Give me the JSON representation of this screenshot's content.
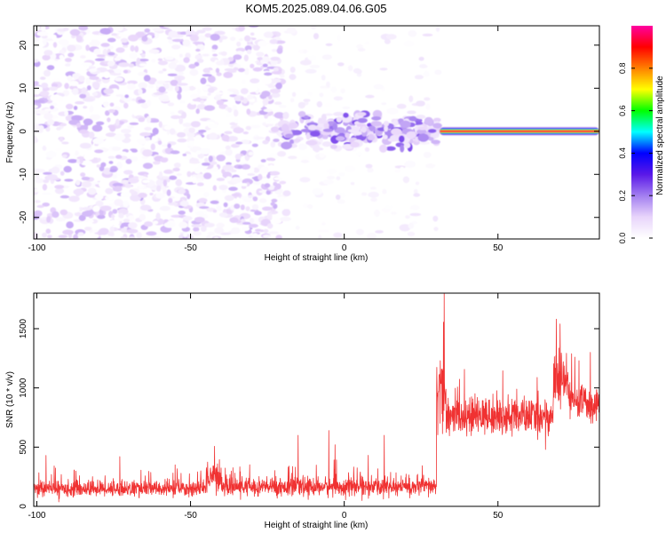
{
  "title": "KOM5.2025.089.04.06.G05",
  "chart_data": [
    {
      "type": "heatmap",
      "name": "spectrogram",
      "xlabel": "Height of straight line (km)",
      "ylabel": "Frequency (Hz)",
      "xlim": [
        -101,
        83
      ],
      "ylim": [
        -25,
        24.5
      ],
      "x_ticks": [
        -100,
        -50,
        0,
        50
      ],
      "y_ticks": [
        -20,
        -10,
        0,
        10,
        20
      ],
      "colorbar": {
        "label": "Normalized spectral amplitude",
        "range": [
          0.0,
          1.0
        ],
        "ticks": [
          "0.0",
          "0.2",
          "0.4",
          "0.6",
          "0.8"
        ],
        "colormap": [
          "#ffffff",
          "#e8d4fb",
          "#a27ef0",
          "#5a18e8",
          "#0000ff",
          "#00ffff",
          "#00ff00",
          "#ffff00",
          "#ff8000",
          "#ff0000",
          "#ff00a0"
        ]
      },
      "features": [
        {
          "kind": "scattered-noise",
          "x_range": [
            -101,
            -20
          ],
          "y_range": [
            -25,
            24.5
          ],
          "density": "high",
          "amplitude": [
            0.0,
            0.15
          ]
        },
        {
          "kind": "scattered-noise",
          "x_range": [
            -20,
            31
          ],
          "y_range": [
            -25,
            24.5
          ],
          "density": "low",
          "amplitude": [
            0.0,
            0.07
          ]
        },
        {
          "kind": "band-cluster",
          "x_range": [
            -20,
            31
          ],
          "y_range": [
            -4,
            4
          ],
          "amplitude": [
            0.05,
            0.25
          ]
        },
        {
          "kind": "carrier-line",
          "x_range": [
            31,
            83
          ],
          "frequency": 0,
          "amplitude": 0.95
        }
      ]
    },
    {
      "type": "line",
      "name": "snr",
      "xlabel": "Height of straight line (km)",
      "ylabel": "SNR (10 * v/v)",
      "xlim": [
        -101,
        83
      ],
      "ylim": [
        0,
        1800
      ],
      "x_ticks": [
        -100,
        -50,
        0,
        50
      ],
      "y_ticks": [
        0,
        500,
        1000,
        1500
      ],
      "color": "#f03232",
      "segments": [
        {
          "x_range": [
            -101,
            -45
          ],
          "mean": 150,
          "spread": 60
        },
        {
          "x_range": [
            -45,
            -40
          ],
          "mean": 260,
          "spread": 120
        },
        {
          "x_range": [
            -40,
            30
          ],
          "mean": 165,
          "spread": 70
        },
        {
          "x_range": [
            30,
            33
          ],
          "mean": 950,
          "spread": 300
        },
        {
          "x_range": [
            33,
            68
          ],
          "mean": 760,
          "spread": 140
        },
        {
          "x_range": [
            68,
            73
          ],
          "mean": 1050,
          "spread": 220
        },
        {
          "x_range": [
            73,
            83
          ],
          "mean": 880,
          "spread": 140
        }
      ],
      "spikes": [
        {
          "x": 32.5,
          "y": 1800
        },
        {
          "x": 30.8,
          "y": 1100
        },
        {
          "x": -15,
          "y": 600
        },
        {
          "x": -5,
          "y": 640
        },
        {
          "x": -3,
          "y": 520
        },
        {
          "x": 13,
          "y": 600
        },
        {
          "x": 65.5,
          "y": 480
        },
        {
          "x": 69,
          "y": 1580
        },
        {
          "x": 70.2,
          "y": 1540
        },
        {
          "x": 75,
          "y": 1260
        },
        {
          "x": 80,
          "y": 1300
        },
        {
          "x": -73,
          "y": 420
        },
        {
          "x": -97,
          "y": 430
        },
        {
          "x": -55,
          "y": 350
        }
      ]
    }
  ]
}
